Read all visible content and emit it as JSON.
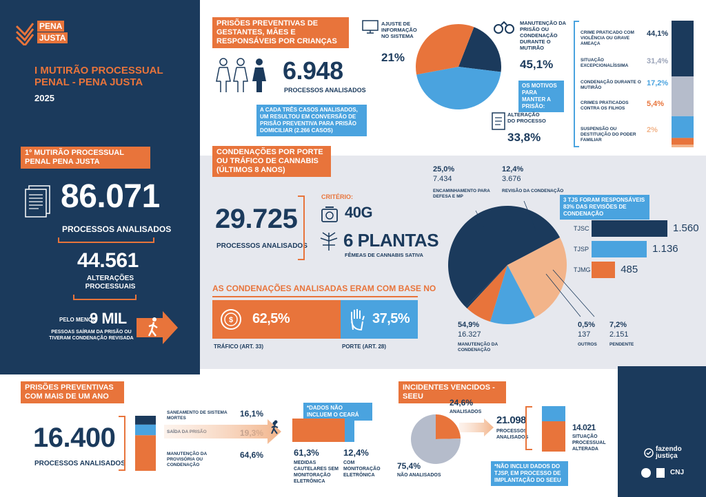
{
  "brand": {
    "logo_line1": "PENA",
    "logo_line2": "JUSTA",
    "title": "I MUTIRÃO PROCESSUAL PENAL - PENA JUSTA",
    "year": "2025"
  },
  "left": {
    "tag": "1º MUTIRÃO PROCESSUAL PENAL PENA JUSTA",
    "total": "86.071",
    "total_label": "PROCESSOS ANALISADOS",
    "changes": "44.561",
    "changes_label": "ALTERAÇÕES PROCESSUAIS",
    "released_prefix": "PELO MENOS",
    "released": "9 MIL",
    "released_label": "PESSOAS SAÍRAM DA PRISÃO OU TIVERAM CONDENAÇÃO REVISADA"
  },
  "preventivas_gestantes": {
    "tag": "PRISÕES PREVENTIVAS DE GESTANTES, MÃES E RESPONSÁVEIS POR CRIANÇAS",
    "total": "6.948",
    "total_label": "PROCESSOS ANALISADOS",
    "note": "A CADA TRÊS CASOS ANALISADOS, UM RESULTOU EM CONVERSÃO DE PRISÃO PREVENTIVA PARA PRISÃO DOMICILIAR (2.266 CASOS)",
    "ajuste_label": "AJUSTE DE INFORMAÇÃO NO SISTEMA",
    "ajuste_pct": "21%",
    "manut_label": "MANUTENÇÃO DA PRISÃO OU CONDENAÇÃO DURANTE O MUTIRÃO",
    "manut_pct": "45,1%",
    "motivos_note": "OS MOTIVOS PARA MANTER A PRISÃO:",
    "alter_label": "ALTERAÇÃO DO PROCESSO",
    "alter_pct": "33,8%"
  },
  "chart_data": [
    {
      "type": "pie",
      "values": [
        21,
        45.1,
        33.8
      ],
      "labels": [
        "AJUSTE DE INFORMAÇÃO NO SISTEMA",
        "MANUTENÇÃO DA PRISÃO OU CONDENAÇÃO DURANTE O MUTIRÃO",
        "ALTERAÇÃO DO PROCESSO"
      ],
      "colors": [
        "#1b3a5c",
        "#4aa3df",
        "#e8743b"
      ]
    },
    {
      "type": "bar",
      "orientation": "vertical-stacked",
      "categories": [
        "CRIME PRATICADO COM VIOLÊNCIA OU GRAVE AMEAÇA",
        "SITUAÇÃO EXCEPCIONALÍSSIMA",
        "CONDENAÇÃO DURANTE O MUTIRÃO",
        "CRIMES PRATICADOS CONTRA OS FILHOS",
        "SUSPENSÃO OU DESTITUIÇÃO DO PODER FAMILIAR"
      ],
      "values": [
        44.1,
        31.4,
        17.2,
        5.4,
        2
      ],
      "labels": [
        "44,1%",
        "31,4%",
        "17,2%",
        "5,4%",
        "2%"
      ],
      "colors": [
        "#1b3a5c",
        "#b5bccb",
        "#4aa3df",
        "#e8743b",
        "#f2b48a"
      ]
    },
    {
      "type": "pie",
      "values": [
        54.9,
        25.0,
        12.4,
        7.2,
        0.5
      ],
      "labels": [
        "MANUTENÇÃO DA CONDENAÇÃO",
        "ENCAMINHAMENTO PARA DEFESA E MP",
        "REVISÃO DA CONDENAÇÃO",
        "PENDENTE",
        "OUTROS"
      ],
      "pcts": [
        "54,9%",
        "25,0%",
        "12,4%",
        "7,2%",
        "0,5%"
      ],
      "counts": [
        "16.327",
        "7.434",
        "3.676",
        "2.151",
        "137"
      ],
      "colors": [
        "#1b3a5c",
        "#f2b48a",
        "#4aa3df",
        "#e8743b",
        "#1b3a5c"
      ]
    },
    {
      "type": "bar",
      "orientation": "horizontal",
      "categories": [
        "TJSC",
        "TJSP",
        "TJMG"
      ],
      "values": [
        1560,
        1136,
        485
      ],
      "labels": [
        "1.560",
        "1.136",
        "485"
      ],
      "colors": [
        "#1b3a5c",
        "#4aa3df",
        "#e8743b"
      ]
    },
    {
      "type": "bar",
      "orientation": "vertical-stacked",
      "categories": [
        "SANEAMENTO DE SISTEMA MORTES",
        "SAÍDA DA PRISÃO",
        "MANUTENÇÃO DA PROVISÓRIA OU CONDENAÇÃO"
      ],
      "values": [
        16.1,
        19.3,
        64.6
      ],
      "labels": [
        "16,1%",
        "19,3%",
        "64,6%"
      ],
      "colors": [
        "#1b3a5c",
        "#4aa3df",
        "#e8743b"
      ]
    },
    {
      "type": "pie",
      "values": [
        24.6,
        75.4
      ],
      "labels": [
        "ANALISADOS",
        "NÃO ANALISADOS"
      ],
      "pcts": [
        "24,6%",
        "75,4%"
      ],
      "colors": [
        "#e8743b",
        "#b5bccb"
      ]
    }
  ],
  "cannabis": {
    "tag": "CONDENAÇÕES POR PORTE OU TRÁFICO DE CANNABIS (ÚLTIMOS 8 ANOS)",
    "total": "29.725",
    "total_label": "PROCESSOS ANALISADOS",
    "criterio": "CRITÉRIO:",
    "weight": "40G",
    "plants": "6 PLANTAS",
    "plants_label": "FÊMEAS DE CANNABIS SATIVA",
    "basis_title": "AS CONDENAÇÕES ANALISADAS ERAM COM BASE NO",
    "trafico_pct": "62,5%",
    "trafico_label": "TRÁFICO (ART. 33)",
    "porte_pct": "37,5%",
    "porte_label": "PORTE (ART. 28)",
    "tj_note": "3 TJS FORAM RESPONSÁVEIS 83% DAS REVISÕES DE CONDENAÇÃO"
  },
  "preventivas_ano": {
    "tag": "PRISÕES PREVENTIVAS COM MAIS DE UM ANO",
    "total": "16.400",
    "total_label": "PROCESSOS ANALISADOS",
    "note": "*DADOS NÃO INCLUEM O CEARÁ",
    "cautelar_pct": "61,3%",
    "cautelar_label": "MEDIDAS CAUTELARES SEM MONITORAÇÃO ELETRÔNICA",
    "monit_pct": "12,4%",
    "monit_label": "COM MONITORAÇÃO ELETRÔNICA"
  },
  "seeu": {
    "tag": "INCIDENTES VENCIDOS - SEEU",
    "total": "21.098",
    "total_label": "PROCESSOS ANALISADOS",
    "altered": "14.021",
    "altered_label": "SITUAÇÃO PROCESSUAL ALTERADA",
    "note": "*NÃO INCLUI DADOS DO TJSP, EM PROCESSO DE IMPLANTAÇÃO DO SEEU"
  },
  "footer": {
    "brand": "fazendo justiça",
    "cnj": "CNJ"
  }
}
